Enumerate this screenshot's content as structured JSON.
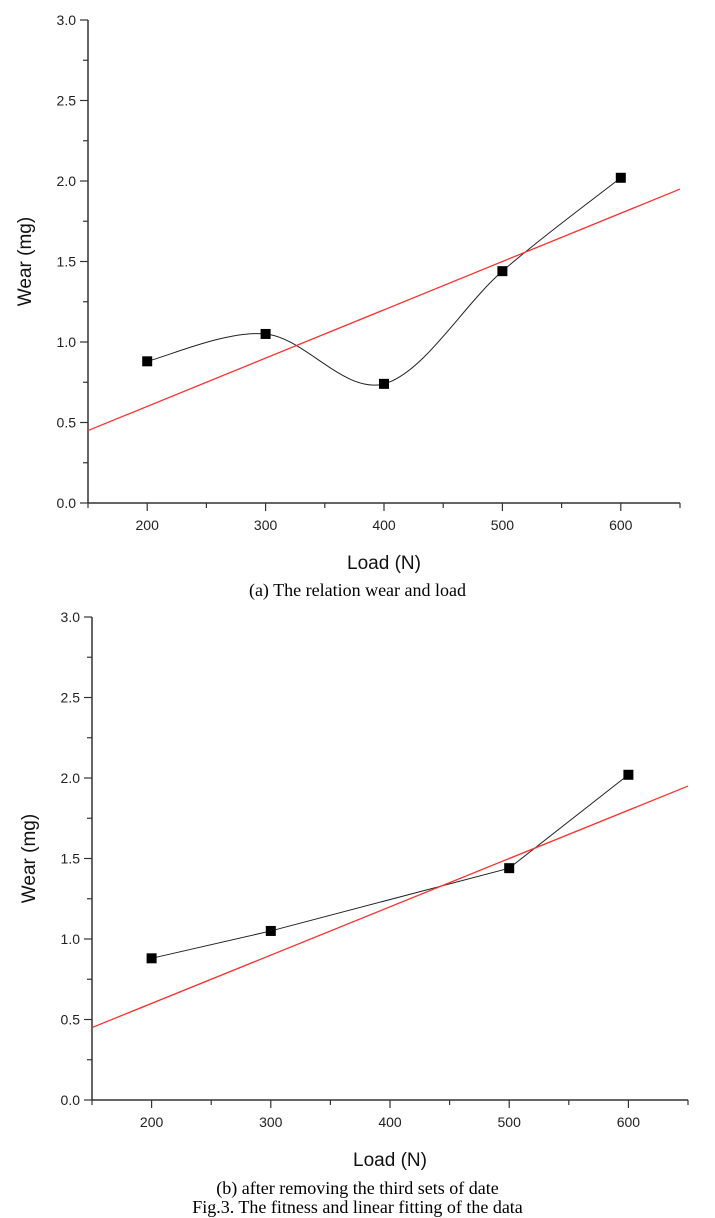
{
  "chart_data": [
    {
      "type": "line",
      "xlabel": "Load (N)",
      "ylabel": "Wear (mg)",
      "xlim": [
        150,
        650
      ],
      "ylim": [
        0.0,
        3.0
      ],
      "xticks": [
        "200",
        "300",
        "400",
        "500",
        "600"
      ],
      "yticks": [
        "0.0",
        "0.5",
        "1.0",
        "1.5",
        "2.0",
        "2.5",
        "3.0"
      ],
      "grid": false,
      "series": [
        {
          "x": [
            200,
            300,
            400,
            500,
            600
          ],
          "y": [
            0.88,
            1.05,
            0.74,
            1.44,
            2.02
          ],
          "style": "spline",
          "marker": "square",
          "color": "#000000"
        },
        {
          "x": [
            150,
            650
          ],
          "y": [
            0.45,
            1.95
          ],
          "style": "linear-fit",
          "color": "#ff3030"
        }
      ],
      "caption": "(a)  The relation wear and load"
    },
    {
      "type": "line",
      "xlabel": "Load (N)",
      "ylabel": "Wear (mg)",
      "xlim": [
        150,
        650
      ],
      "ylim": [
        0.0,
        3.0
      ],
      "xticks": [
        "200",
        "300",
        "400",
        "500",
        "600"
      ],
      "yticks": [
        "0.0",
        "0.5",
        "1.0",
        "1.5",
        "2.0",
        "2.5",
        "3.0"
      ],
      "grid": false,
      "series": [
        {
          "x": [
            200,
            300,
            500,
            600
          ],
          "y": [
            0.88,
            1.05,
            1.44,
            2.02
          ],
          "style": "straight",
          "marker": "square",
          "color": "#000000"
        },
        {
          "x": [
            150,
            650
          ],
          "y": [
            0.45,
            1.95
          ],
          "style": "linear-fit",
          "color": "#ff3030"
        }
      ],
      "caption": "(b) after removing the third sets of date"
    }
  ],
  "figure_caption": "Fig.3. The fitness and linear fitting of the data"
}
